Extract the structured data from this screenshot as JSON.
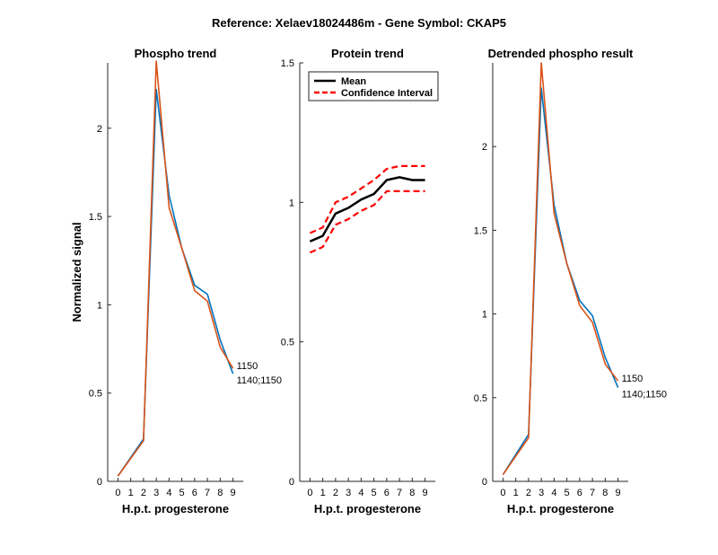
{
  "figure": {
    "suptitle": "Reference:  Xelaev18024486m - Gene Symbol:  CKAP5"
  },
  "colors": {
    "blue": "#0072BD",
    "orange": "#D95319",
    "black": "#000000",
    "red": "#FF0000"
  },
  "chart_data": [
    {
      "type": "line",
      "title": "Phospho trend",
      "xlabel": "H.p.t. progesterone",
      "ylabel": "Normalized signal",
      "xticks": [
        0,
        1,
        2,
        3,
        4,
        5,
        6,
        7,
        8,
        9
      ],
      "xlim": [
        -0.8,
        9.8
      ],
      "yticks": [
        0,
        0.5,
        1,
        1.5,
        2
      ],
      "ytick_labels": [
        "0",
        "0.5",
        "1",
        "1.5",
        "2"
      ],
      "ylim": [
        0,
        2.37
      ],
      "series": [
        {
          "color": "blue",
          "label": "1140;1150",
          "x": [
            0,
            2,
            3,
            4,
            5,
            6,
            7,
            8,
            9
          ],
          "y": [
            0.03,
            0.24,
            2.22,
            1.62,
            1.32,
            1.11,
            1.06,
            0.8,
            0.61
          ]
        },
        {
          "color": "orange",
          "label": "1150",
          "x": [
            0,
            2,
            3,
            4,
            5,
            6,
            7,
            8,
            9
          ],
          "y": [
            0.03,
            0.23,
            2.38,
            1.55,
            1.32,
            1.08,
            1.02,
            0.76,
            0.64
          ]
        }
      ]
    },
    {
      "type": "line",
      "title": "Protein trend",
      "xlabel": "H.p.t. progesterone",
      "ylabel": "",
      "xticks": [
        0,
        1,
        2,
        3,
        4,
        5,
        6,
        7,
        8,
        9
      ],
      "xlim": [
        -0.8,
        9.8
      ],
      "yticks": [
        0,
        0.5,
        1,
        1.5
      ],
      "ytick_labels": [
        "0",
        "0.5",
        "1",
        "1.5"
      ],
      "ylim": [
        0,
        1.5
      ],
      "legend": {
        "placement": "top-left",
        "entries": [
          {
            "label": "Mean",
            "color": "black",
            "style": "solid"
          },
          {
            "label": "Confidence Interval",
            "color": "red",
            "style": "dashed"
          }
        ]
      },
      "series": [
        {
          "color": "black",
          "style": "solid",
          "x": [
            0,
            1,
            2,
            3,
            4,
            5,
            6,
            7,
            8,
            9
          ],
          "y": [
            0.86,
            0.88,
            0.96,
            0.98,
            1.01,
            1.03,
            1.08,
            1.09,
            1.08,
            1.08
          ]
        },
        {
          "color": "red",
          "style": "dashed",
          "x": [
            0,
            1,
            2,
            3,
            4,
            5,
            6,
            7,
            8,
            9
          ],
          "y": [
            0.89,
            0.91,
            1.0,
            1.02,
            1.05,
            1.08,
            1.12,
            1.13,
            1.13,
            1.13
          ]
        },
        {
          "color": "red",
          "style": "dashed",
          "x": [
            0,
            1,
            2,
            3,
            4,
            5,
            6,
            7,
            8,
            9
          ],
          "y": [
            0.82,
            0.84,
            0.92,
            0.94,
            0.97,
            0.99,
            1.04,
            1.04,
            1.04,
            1.04
          ]
        }
      ]
    },
    {
      "type": "line",
      "title": "Detrended phospho result",
      "xlabel": "H.p.t. progesterone",
      "ylabel": "",
      "xticks": [
        0,
        1,
        2,
        3,
        4,
        5,
        6,
        7,
        8,
        9
      ],
      "xlim": [
        -0.8,
        9.8
      ],
      "yticks": [
        0,
        0.5,
        1,
        1.5,
        2
      ],
      "ytick_labels": [
        "0",
        "0.5",
        "1",
        "1.5",
        "2"
      ],
      "ylim": [
        0,
        2.5
      ],
      "series": [
        {
          "color": "blue",
          "label": "1140;1150",
          "x": [
            0,
            2,
            3,
            4,
            5,
            6,
            7,
            8,
            9
          ],
          "y": [
            0.04,
            0.28,
            2.35,
            1.65,
            1.3,
            1.08,
            0.99,
            0.74,
            0.56
          ]
        },
        {
          "color": "orange",
          "label": "1150",
          "x": [
            0,
            2,
            3,
            4,
            5,
            6,
            7,
            8,
            9
          ],
          "y": [
            0.04,
            0.26,
            2.5,
            1.6,
            1.3,
            1.05,
            0.95,
            0.7,
            0.6
          ]
        }
      ]
    }
  ]
}
